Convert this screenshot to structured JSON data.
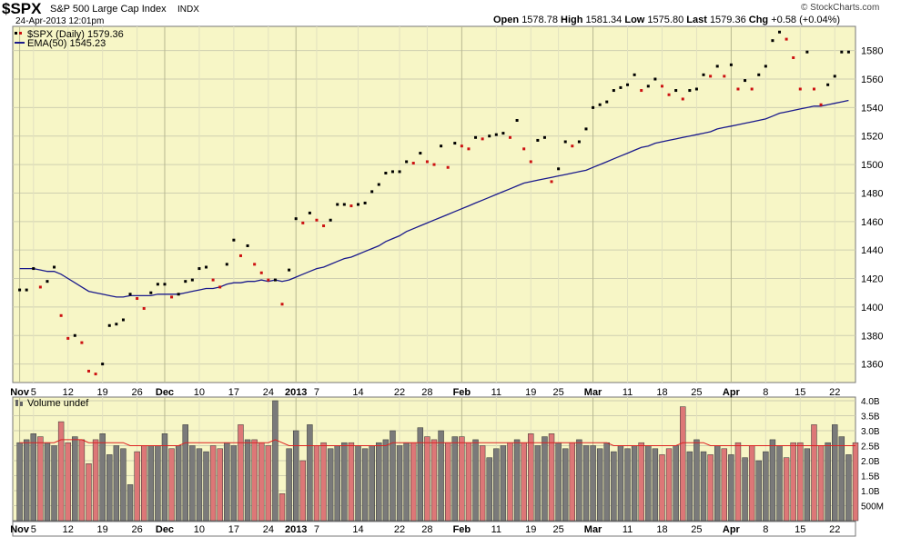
{
  "header": {
    "symbol": "$SPX",
    "name": "S&P 500 Large Cap Index",
    "exchange": "INDX",
    "date": "24-Apr-2013 12:01pm",
    "watermark": "© StockCharts.com",
    "open_label": "Open",
    "open": "1578.78",
    "high_label": "High",
    "high": "1581.34",
    "low_label": "Low",
    "low": "1575.80",
    "last_label": "Last",
    "last": "1579.36",
    "chg_label": "Chg",
    "chg": "+0.58 (+0.04%)"
  },
  "legend": {
    "price_label": "$SPX (Daily) 1579.36",
    "ema_label": "EMA(50) 1545.23",
    "volume_label": "Volume undef"
  },
  "colors": {
    "background": "#f7f6c6",
    "up": "#000000",
    "down": "#cc1111",
    "ema": "#1a1a8c",
    "vol_up": "#7a7a7a",
    "vol_down": "#dd7777",
    "vol_avg": "#dd2222"
  },
  "chart_data": [
    {
      "type": "scatter",
      "panel": "price",
      "y_ticks": [
        "1360",
        "1380",
        "1400",
        "1420",
        "1440",
        "1460",
        "1480",
        "1500",
        "1520",
        "1540",
        "1560",
        "1580"
      ],
      "ylim": [
        1347,
        1597
      ],
      "x_tick_labels": [
        "Nov",
        "5",
        "12",
        "19",
        "26",
        "Dec",
        "10",
        "17",
        "24",
        "2013",
        "7",
        "14",
        "22",
        "28",
        "Feb",
        "11",
        "19",
        "25",
        "Mar",
        "11",
        "18",
        "25",
        "Apr",
        "8",
        "15",
        "22"
      ],
      "series": [
        {
          "name": "$SPX (Daily)",
          "values": [
            1412,
            1412,
            1427,
            1414,
            1418,
            1428,
            1394,
            1378,
            1380,
            1375,
            1355,
            1353,
            1360,
            1387,
            1388,
            1391,
            1409,
            1406,
            1399,
            1410,
            1416,
            1416,
            1407,
            1409,
            1418,
            1419,
            1427,
            1428,
            1419,
            1414,
            1430,
            1447,
            1436,
            1443,
            1430,
            1424,
            1419,
            1419,
            1402,
            1426,
            1462,
            1459,
            1466,
            1461,
            1457,
            1461,
            1472,
            1472,
            1471,
            1472,
            1473,
            1481,
            1486,
            1494,
            1495,
            1495,
            1502,
            1501,
            1508,
            1502,
            1500,
            1513,
            1498,
            1515,
            1513,
            1511,
            1519,
            1518,
            1520,
            1521,
            1522,
            1519,
            1531,
            1511,
            1502,
            1517,
            1519,
            1488,
            1497,
            1516,
            1513,
            1516,
            1525,
            1540,
            1542,
            1544,
            1552,
            1554,
            1556,
            1563,
            1552,
            1555,
            1560,
            1555,
            1549,
            1552,
            1546,
            1552,
            1553,
            1563,
            1562,
            1569,
            1562,
            1570,
            1553,
            1559,
            1553,
            1563,
            1569,
            1587,
            1593,
            1588,
            1575,
            1553,
            1579,
            1553,
            1542,
            1556,
            1562,
            1579,
            1579
          ]
        },
        {
          "name": "EMA(50)",
          "values": [
            1427,
            1427,
            1427,
            1426,
            1425,
            1425,
            1423,
            1420,
            1417,
            1414,
            1411,
            1410,
            1409,
            1408,
            1407,
            1407,
            1408,
            1408,
            1408,
            1408,
            1409,
            1409,
            1409,
            1409,
            1410,
            1411,
            1412,
            1413,
            1413,
            1414,
            1416,
            1417,
            1417,
            1418,
            1418,
            1419,
            1418,
            1419,
            1418,
            1419,
            1421,
            1423,
            1425,
            1427,
            1428,
            1430,
            1432,
            1434,
            1435,
            1437,
            1439,
            1441,
            1443,
            1446,
            1448,
            1450,
            1453,
            1455,
            1457,
            1459,
            1461,
            1463,
            1465,
            1467,
            1469,
            1471,
            1473,
            1475,
            1477,
            1479,
            1481,
            1483,
            1485,
            1487,
            1488,
            1489,
            1490,
            1491,
            1492,
            1493,
            1494,
            1495,
            1496,
            1498,
            1500,
            1502,
            1504,
            1506,
            1508,
            1510,
            1512,
            1513,
            1515,
            1516,
            1517,
            1518,
            1519,
            1520,
            1521,
            1522,
            1523,
            1525,
            1526,
            1527,
            1528,
            1529,
            1530,
            1531,
            1532,
            1534,
            1536,
            1537,
            1538,
            1539,
            1540,
            1541,
            1541,
            1542,
            1543,
            1544,
            1545
          ]
        }
      ]
    },
    {
      "type": "bar",
      "panel": "volume",
      "y_ticks": [
        "500M",
        "1.0B",
        "1.5B",
        "2.0B",
        "2.5B",
        "3.0B",
        "3.5B",
        "4.0B"
      ],
      "ylim": [
        0,
        4.0
      ],
      "x_tick_labels": [
        "Nov",
        "5",
        "12",
        "19",
        "26",
        "Dec",
        "10",
        "17",
        "24",
        "2013",
        "7",
        "14",
        "22",
        "28",
        "Feb",
        "11",
        "19",
        "25",
        "Mar",
        "11",
        "18",
        "25",
        "Apr",
        "8",
        "15",
        "22"
      ],
      "series": [
        {
          "name": "Volume",
          "values": [
            2.6,
            2.7,
            2.9,
            2.8,
            2.6,
            2.5,
            3.3,
            2.6,
            2.8,
            2.7,
            1.9,
            2.7,
            2.9,
            2.2,
            2.5,
            2.4,
            1.2,
            2.3,
            2.5,
            2.5,
            2.5,
            2.9,
            2.4,
            2.5,
            3.2,
            2.5,
            2.4,
            2.3,
            2.5,
            2.4,
            2.6,
            2.5,
            3.2,
            2.7,
            2.7,
            2.6,
            2.5,
            4.0,
            0.9,
            2.4,
            3.0,
            2.0,
            3.2,
            2.5,
            2.6,
            2.4,
            2.5,
            2.6,
            2.6,
            2.5,
            2.4,
            2.5,
            2.6,
            2.7,
            3.0,
            2.5,
            2.6,
            2.6,
            3.1,
            2.8,
            2.7,
            3.0,
            2.6,
            2.8,
            2.8,
            2.6,
            2.7,
            2.5,
            2.1,
            2.4,
            2.5,
            2.6,
            2.7,
            2.6,
            2.9,
            2.5,
            2.8,
            2.9,
            2.6,
            2.4,
            2.6,
            2.7,
            2.5,
            2.5,
            2.4,
            2.6,
            2.3,
            2.5,
            2.4,
            2.5,
            2.6,
            2.5,
            2.4,
            2.2,
            2.4,
            2.5,
            3.8,
            2.3,
            2.7,
            2.3,
            2.2,
            2.5,
            2.4,
            2.2,
            2.6,
            2.1,
            2.5,
            2.0,
            2.3,
            2.7,
            2.5,
            2.1,
            2.6,
            2.6,
            2.4,
            3.2,
            2.5,
            2.6,
            3.2,
            2.8,
            2.2,
            2.6
          ]
        },
        {
          "name": "Average",
          "values": [
            2.6,
            2.6,
            2.6,
            2.6,
            2.6,
            2.6,
            2.7,
            2.7,
            2.7,
            2.7,
            2.6,
            2.6,
            2.6,
            2.6,
            2.6,
            2.6,
            2.5,
            2.5,
            2.5,
            2.5,
            2.5,
            2.5,
            2.5,
            2.5,
            2.6,
            2.6,
            2.6,
            2.6,
            2.6,
            2.6,
            2.6,
            2.6,
            2.6,
            2.6,
            2.6,
            2.6,
            2.6,
            2.7,
            2.6,
            2.5,
            2.5,
            2.5,
            2.5,
            2.5,
            2.5,
            2.5,
            2.5,
            2.5,
            2.5,
            2.5,
            2.5,
            2.5,
            2.5,
            2.5,
            2.6,
            2.6,
            2.6,
            2.6,
            2.6,
            2.6,
            2.6,
            2.6,
            2.6,
            2.6,
            2.6,
            2.6,
            2.6,
            2.6,
            2.6,
            2.6,
            2.6,
            2.6,
            2.6,
            2.6,
            2.6,
            2.6,
            2.6,
            2.6,
            2.6,
            2.6,
            2.6,
            2.6,
            2.6,
            2.6,
            2.6,
            2.6,
            2.5,
            2.5,
            2.5,
            2.5,
            2.5,
            2.5,
            2.5,
            2.5,
            2.5,
            2.5,
            2.6,
            2.6,
            2.6,
            2.6,
            2.5,
            2.5,
            2.5,
            2.5,
            2.5,
            2.5,
            2.5,
            2.5,
            2.5,
            2.5,
            2.5,
            2.5,
            2.5,
            2.5,
            2.5,
            2.5,
            2.5,
            2.5,
            2.5,
            2.5,
            2.5,
            2.5
          ]
        }
      ]
    }
  ]
}
